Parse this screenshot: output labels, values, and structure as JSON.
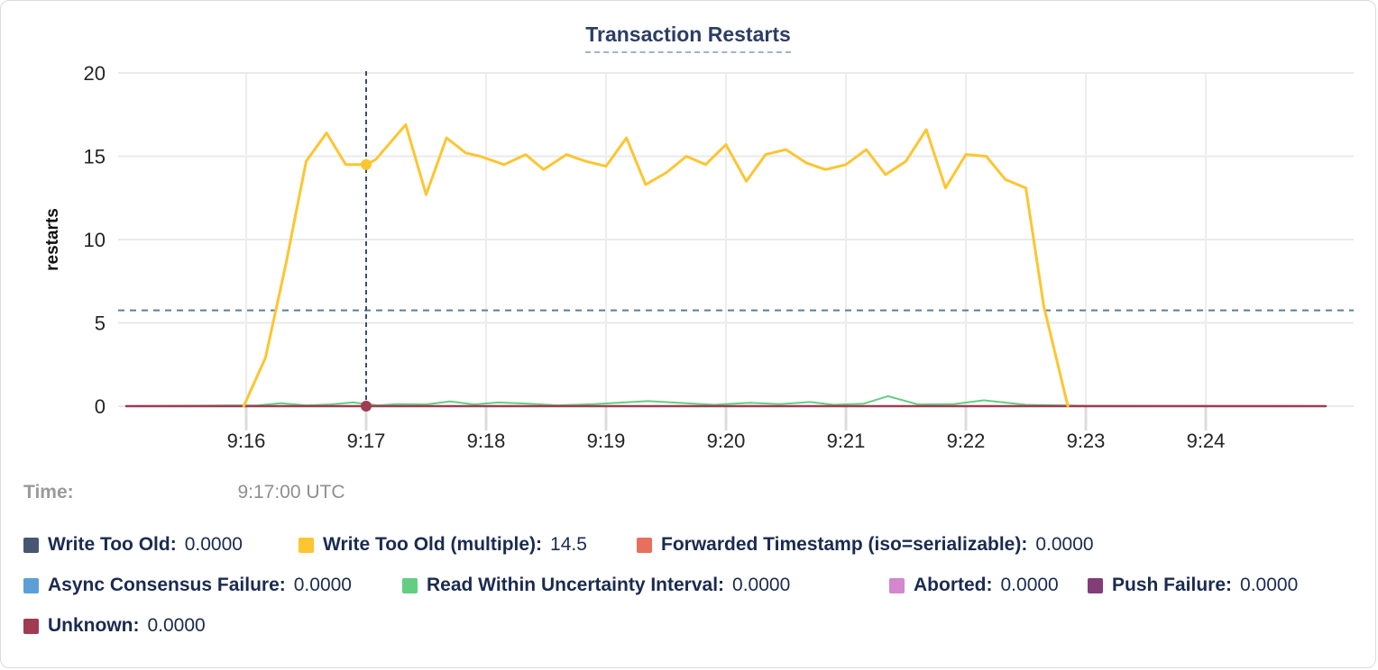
{
  "title": "Transaction Restarts",
  "hover": {
    "time_label": "Time:",
    "time_value": "9:17:00 UTC"
  },
  "chart_data": {
    "type": "line",
    "title": "Transaction Restarts",
    "xlabel": "",
    "ylabel": "restarts",
    "ylim": [
      0,
      20
    ],
    "y_ticks": [
      0,
      5,
      10,
      15,
      20
    ],
    "x_domain_minutes": [
      15,
      25
    ],
    "x_tick_minutes": [
      16,
      17,
      18,
      19,
      20,
      21,
      22,
      23,
      24
    ],
    "x_tick_labels": [
      "9:16",
      "9:17",
      "9:18",
      "9:19",
      "9:20",
      "9:21",
      "9:22",
      "9:23",
      "9:24"
    ],
    "grid": true,
    "legend_position": "bottom",
    "hover_time_minutes": 17,
    "hover_guide_value": 5.75,
    "hover_dots": [
      {
        "series": "Write Too Old (multiple)",
        "x": 17,
        "y": 14.5
      },
      {
        "series": "Unknown",
        "x": 17,
        "y": 0
      }
    ],
    "series": [
      {
        "name": "Write Too Old",
        "color": "#475672",
        "hover_value": "0.0000",
        "z": 1,
        "width": 2,
        "x": [
          15,
          25
        ],
        "y": [
          0,
          0
        ]
      },
      {
        "name": "Forwarded Timestamp (iso=serializable)",
        "color": "#E86F5E",
        "hover_value": "0.0000",
        "z": 2,
        "width": 2,
        "x": [
          15,
          25
        ],
        "y": [
          0,
          0
        ]
      },
      {
        "name": "Async Consensus Failure",
        "color": "#5C9FD6",
        "hover_value": "0.0000",
        "z": 3,
        "width": 2,
        "x": [
          15,
          25
        ],
        "y": [
          0,
          0
        ]
      },
      {
        "name": "Aborted",
        "color": "#D387CC",
        "hover_value": "0.0000",
        "z": 4,
        "width": 2,
        "x": [
          15,
          25
        ],
        "y": [
          0,
          0
        ]
      },
      {
        "name": "Push Failure",
        "color": "#833D76",
        "hover_value": "0.0000",
        "z": 5,
        "width": 2,
        "x": [
          15,
          25
        ],
        "y": [
          0,
          0
        ]
      },
      {
        "name": "Read Within Uncertainty Interval",
        "color": "#62CE83",
        "hover_value": "0.0000",
        "z": 6,
        "width": 2,
        "x": [
          15.0,
          16.1,
          16.29,
          16.5,
          16.7,
          16.89,
          17.1,
          17.26,
          17.5,
          17.7,
          17.9,
          18.1,
          18.35,
          18.6,
          18.9,
          19.1,
          19.35,
          19.6,
          19.9,
          20.2,
          20.45,
          20.7,
          20.9,
          21.15,
          21.35,
          21.6,
          21.9,
          22.15,
          22.5,
          23.0,
          25.0
        ],
        "y": [
          0,
          0.05,
          0.18,
          0.05,
          0.1,
          0.22,
          0.05,
          0.12,
          0.1,
          0.28,
          0.1,
          0.22,
          0.15,
          0.05,
          0.12,
          0.2,
          0.3,
          0.2,
          0.08,
          0.2,
          0.12,
          0.25,
          0.08,
          0.15,
          0.6,
          0.1,
          0.12,
          0.35,
          0.08,
          0.02,
          0.0
        ]
      },
      {
        "name": "Unknown",
        "color": "#A03B52",
        "hover_value": "0.0000",
        "z": 7,
        "width": 2.5,
        "x": [
          15,
          25
        ],
        "y": [
          0,
          0
        ]
      },
      {
        "name": "Write Too Old (multiple)",
        "color": "#FDC530",
        "hover_value": "14.5",
        "z": 8,
        "width": 3,
        "x": [
          15.98,
          16.16,
          16.33,
          16.5,
          16.67,
          16.83,
          17.0,
          17.08,
          17.33,
          17.5,
          17.67,
          17.83,
          17.95,
          18.15,
          18.33,
          18.48,
          18.67,
          18.83,
          19.0,
          19.17,
          19.33,
          19.5,
          19.67,
          19.83,
          20.0,
          20.17,
          20.33,
          20.5,
          20.67,
          20.83,
          21.0,
          21.17,
          21.33,
          21.5,
          21.67,
          21.83,
          22.0,
          22.17,
          22.33,
          22.5,
          22.65,
          22.85
        ],
        "y": [
          0,
          2.9,
          8.5,
          14.7,
          16.4,
          14.5,
          14.5,
          14.8,
          16.9,
          12.7,
          16.1,
          15.2,
          15.0,
          14.5,
          15.1,
          14.2,
          15.1,
          14.7,
          14.4,
          16.1,
          13.3,
          14.0,
          15.0,
          14.5,
          15.7,
          13.5,
          15.1,
          15.4,
          14.6,
          14.2,
          14.5,
          15.4,
          13.9,
          14.7,
          16.6,
          13.1,
          15.1,
          15.0,
          13.6,
          13.1,
          6.0,
          0.0
        ]
      }
    ]
  },
  "legend": {
    "rows": [
      [
        {
          "label": "Write Too Old:",
          "value": "0.0000",
          "color": "#475672"
        },
        {
          "label": "Write Too Old (multiple):",
          "value": "14.5",
          "color": "#FDC530"
        },
        {
          "label": "Forwarded Timestamp (iso=serializable):",
          "value": "0.0000",
          "color": "#E86F5E"
        }
      ],
      [
        {
          "label": "Async Consensus Failure:",
          "value": "0.0000",
          "color": "#5C9FD6"
        },
        {
          "label": "Read Within Uncertainty Interval:",
          "value": "0.0000",
          "color": "#62CE83"
        },
        {
          "label": "Aborted:",
          "value": "0.0000",
          "color": "#D387CC"
        },
        {
          "label": "Push Failure:",
          "value": "0.0000",
          "color": "#833D76"
        }
      ],
      [
        {
          "label": "Unknown:",
          "value": "0.0000",
          "color": "#A03B52"
        }
      ]
    ]
  }
}
